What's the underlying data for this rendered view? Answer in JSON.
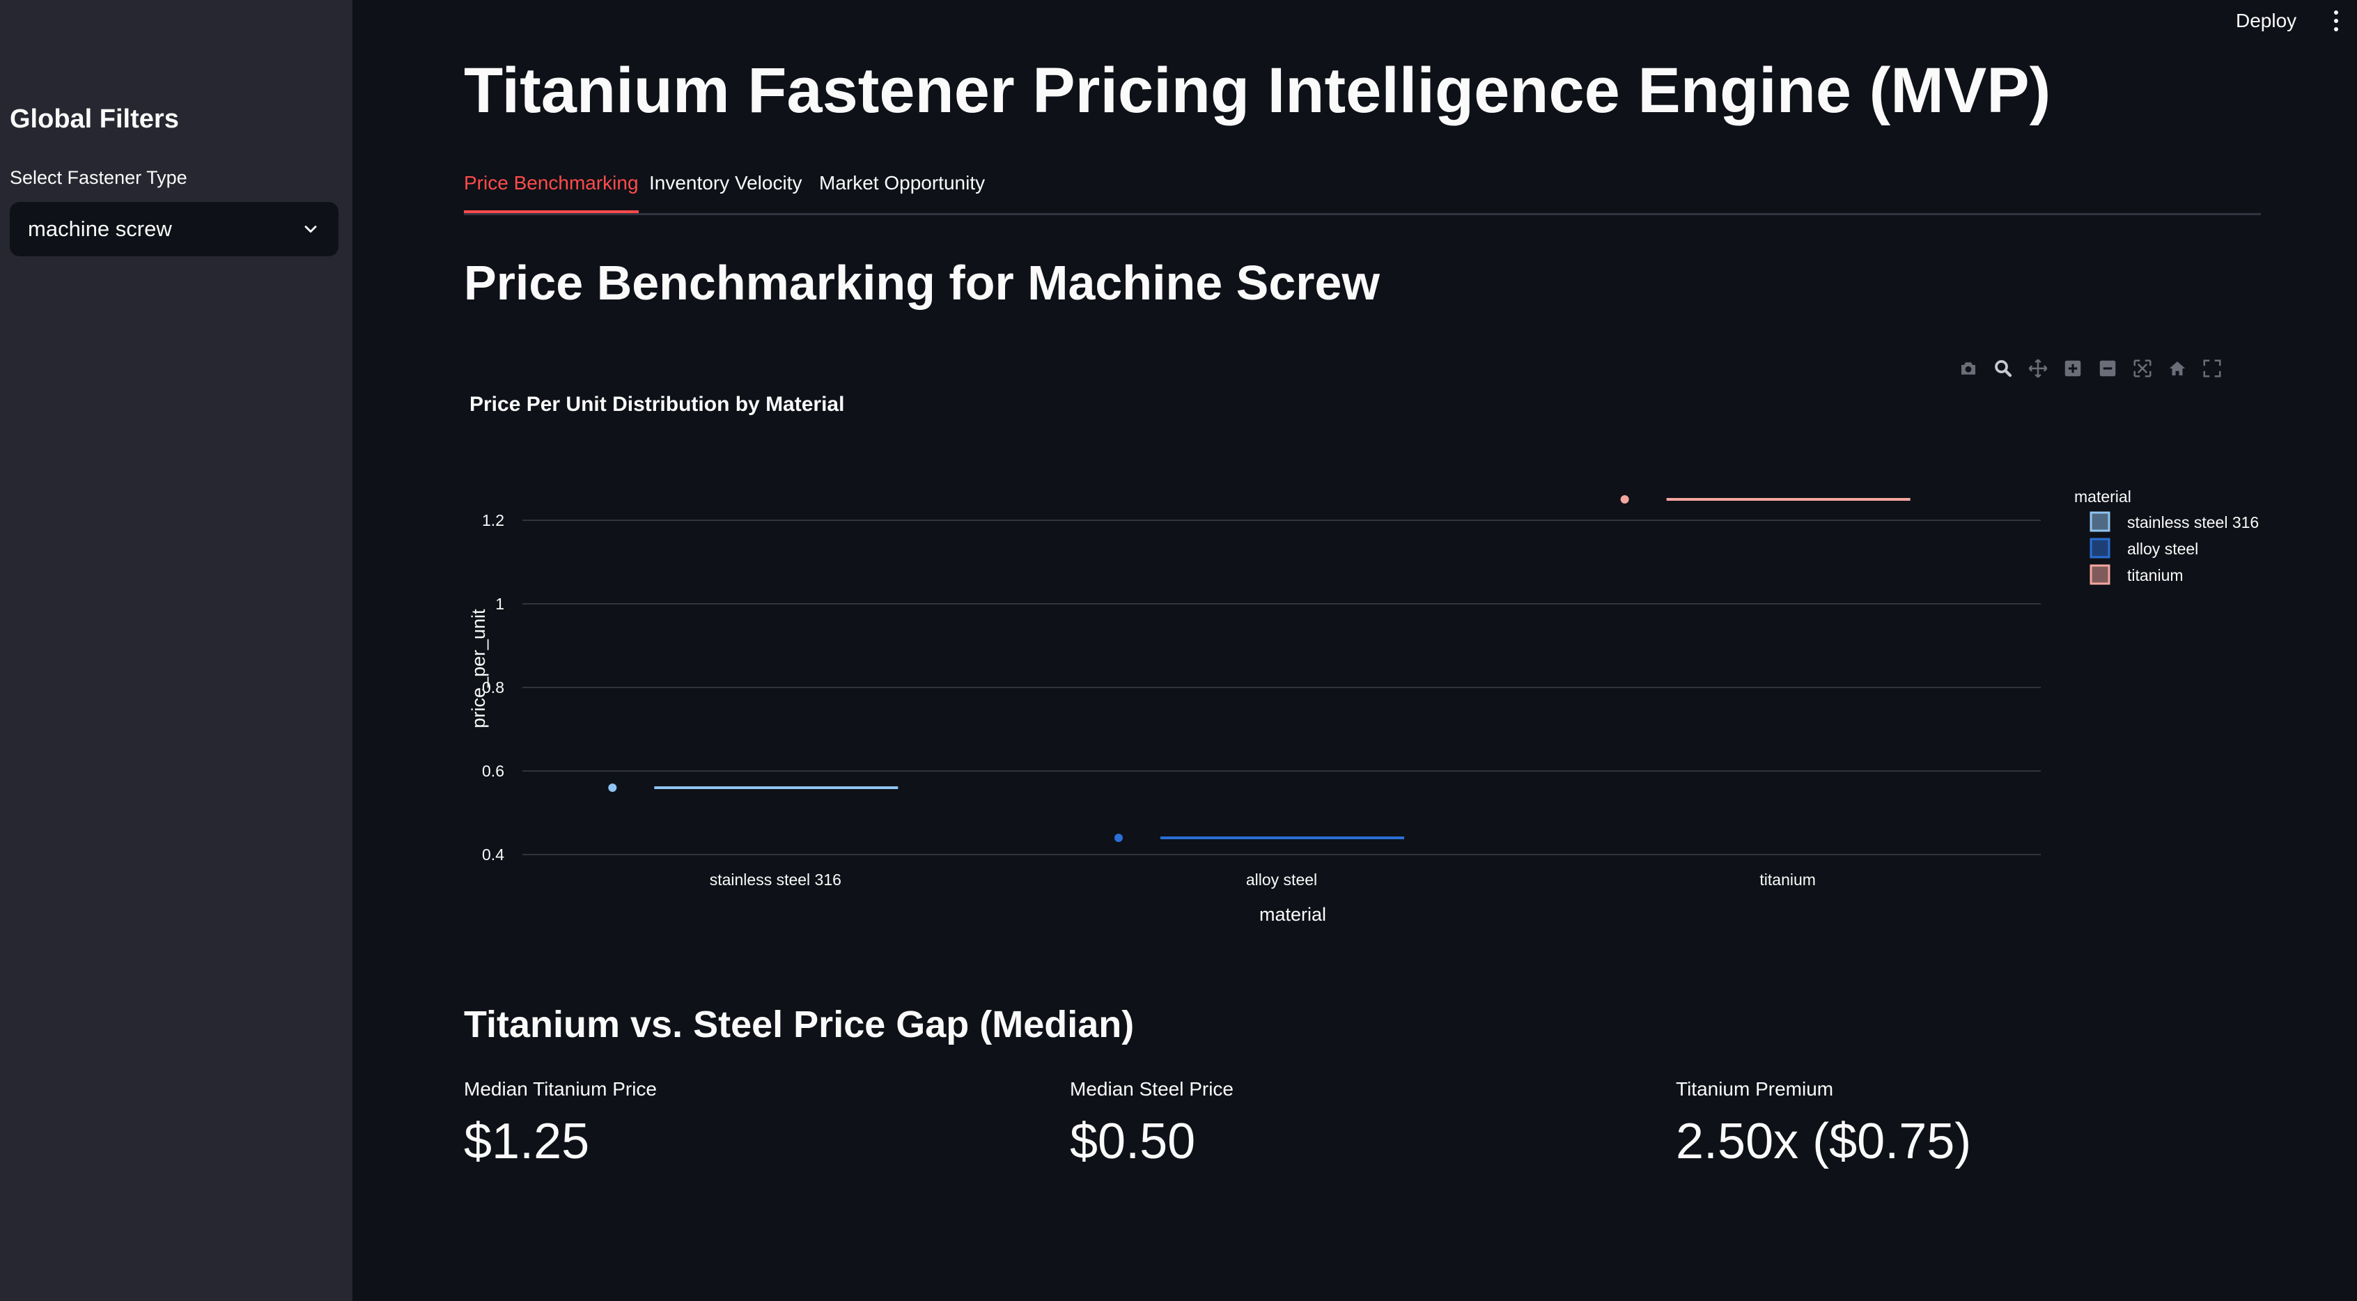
{
  "sidebar": {
    "title": "Global Filters",
    "filter_label": "Select Fastener Type",
    "filter_value": "machine screw"
  },
  "header": {
    "deploy_label": "Deploy"
  },
  "main": {
    "title": "Titanium Fastener Pricing Intelligence Engine (MVP)",
    "tabs": [
      {
        "label": "Price Benchmarking",
        "active": true
      },
      {
        "label": "Inventory Velocity",
        "active": false
      },
      {
        "label": "Market Opportunity",
        "active": false
      }
    ],
    "section_title": "Price Benchmarking for Machine Screw",
    "gap_title": "Titanium vs. Steel Price Gap (Median)",
    "metrics": [
      {
        "label": "Median Titanium Price",
        "value": "$1.25"
      },
      {
        "label": "Median Steel Price",
        "value": "$0.50"
      },
      {
        "label": "Titanium Premium",
        "value": "2.50x ($0.75)"
      }
    ]
  },
  "modebar_icons": [
    "camera-icon",
    "zoom-icon",
    "pan-icon",
    "zoom-in-icon",
    "zoom-out-icon",
    "autoscale-icon",
    "home-icon",
    "fullscreen-icon"
  ],
  "colors": {
    "accent": "#ff4b4b",
    "stainless_steel_316": "#8fc4f1",
    "alloy_steel": "#2a6fd6",
    "titanium": "#f4a6a0"
  },
  "chart_data": {
    "type": "box",
    "title": "Price Per Unit Distribution by Material",
    "xlabel": "material",
    "ylabel": "price_per_unit",
    "categories": [
      "stainless steel 316",
      "alloy steel",
      "titanium"
    ],
    "series": [
      {
        "name": "stainless steel 316",
        "values": [
          0.56
        ],
        "color": "#8fc4f1"
      },
      {
        "name": "alloy steel",
        "values": [
          0.44
        ],
        "color": "#2a6fd6"
      },
      {
        "name": "titanium",
        "values": [
          1.25
        ],
        "color": "#f4a6a0"
      }
    ],
    "yticks": [
      0.4,
      0.6,
      0.8,
      1,
      1.2
    ],
    "ylim": [
      0.4,
      1.25
    ],
    "legend_title": "material",
    "legend_position": "top-right",
    "grid": true
  }
}
